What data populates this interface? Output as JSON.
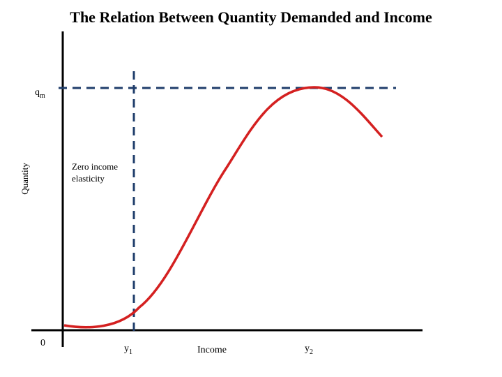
{
  "title": "The Relation Between Quantity Demanded and Income",
  "labels": {
    "origin": "0",
    "qm_main": "q",
    "qm_sub": "m",
    "y_axis": "Quantity",
    "x_axis": "Income",
    "y1_main": "y",
    "y1_sub": "1",
    "y2_main": "y",
    "y2_sub": "2",
    "annotation": "Zero income elasticity"
  },
  "colors": {
    "curve": "#d42020",
    "dashed": "#1f3d6b",
    "axes": "#000000"
  }
}
